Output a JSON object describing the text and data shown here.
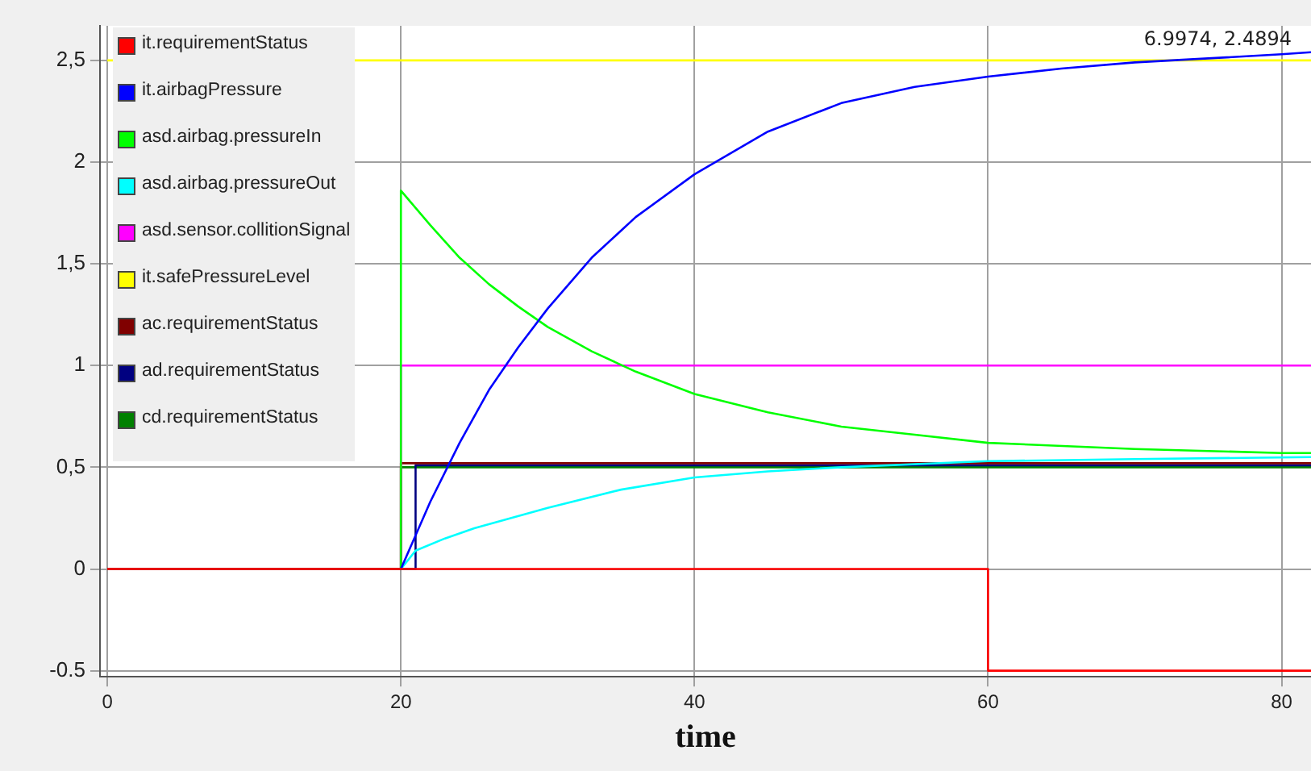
{
  "chart_data": {
    "type": "line",
    "xlabel": "time",
    "xlim": [
      -0.5,
      82
    ],
    "xticks": [
      0,
      20,
      40,
      60,
      80
    ],
    "ylim": [
      -0.53,
      2.67
    ],
    "yticks": [
      {
        "value": -0.5,
        "label": "-0.5"
      },
      0,
      {
        "value": 0.5,
        "label": "0,5"
      },
      1,
      {
        "value": 1.5,
        "label": "1,5"
      },
      2,
      {
        "value": 2.5,
        "label": "2,5"
      }
    ],
    "grid": true,
    "legend": "top left",
    "marker": "none",
    "line_style": "solid",
    "annotations": [
      "6.9974, 2.4894"
    ],
    "series": [
      {
        "name": "it.requirementStatus",
        "color": "#ff0000",
        "x": [
          0,
          60,
          60,
          82
        ],
        "values": [
          0,
          0,
          -0.5,
          -0.5
        ]
      },
      {
        "name": "it.airbagPressure",
        "color": "#0000ff",
        "x": [
          20,
          22,
          24,
          26,
          28,
          30,
          33,
          36,
          40,
          45,
          50,
          55,
          60,
          65,
          70,
          75,
          80,
          82
        ],
        "values": [
          0,
          0.33,
          0.62,
          0.88,
          1.09,
          1.28,
          1.53,
          1.73,
          1.94,
          2.15,
          2.29,
          2.37,
          2.42,
          2.46,
          2.49,
          2.51,
          2.53,
          2.54
        ]
      },
      {
        "name": "asd.airbag.pressureIn",
        "color": "#00ff00",
        "x": [
          20,
          20,
          22,
          24,
          26,
          28,
          30,
          33,
          36,
          40,
          45,
          50,
          55,
          60,
          70,
          80,
          82
        ],
        "values": [
          0,
          1.86,
          1.69,
          1.53,
          1.4,
          1.29,
          1.19,
          1.07,
          0.97,
          0.86,
          0.77,
          0.7,
          0.66,
          0.62,
          0.59,
          0.57,
          0.57
        ]
      },
      {
        "name": "asd.airbag.pressureOut",
        "color": "#00ffff",
        "x": [
          20,
          21,
          23,
          25,
          30,
          35,
          40,
          45,
          50,
          60,
          70,
          82
        ],
        "values": [
          0,
          0.09,
          0.15,
          0.2,
          0.3,
          0.39,
          0.45,
          0.48,
          0.5,
          0.53,
          0.54,
          0.55
        ]
      },
      {
        "name": "asd.sensor.collitionSignal",
        "color": "#ff00ff",
        "x": [
          20,
          20,
          82
        ],
        "values": [
          0,
          1,
          1
        ]
      },
      {
        "name": "it.safePressureLevel",
        "color": "#ffff00",
        "x": [
          0,
          82
        ],
        "values": [
          2.5,
          2.5
        ]
      },
      {
        "name": "ac.requirementStatus",
        "color": "#800000",
        "x": [
          0,
          20,
          20,
          82
        ],
        "values": [
          0,
          0,
          0.52,
          0.52
        ]
      },
      {
        "name": "ad.requirementStatus",
        "color": "#000080",
        "x": [
          0,
          21,
          21,
          82
        ],
        "values": [
          0,
          0,
          0.51,
          0.51
        ]
      },
      {
        "name": "cd.requirementStatus",
        "color": "#008000",
        "x": [
          0,
          20,
          20,
          82
        ],
        "values": [
          0,
          0,
          0.5,
          0.5
        ]
      }
    ]
  }
}
